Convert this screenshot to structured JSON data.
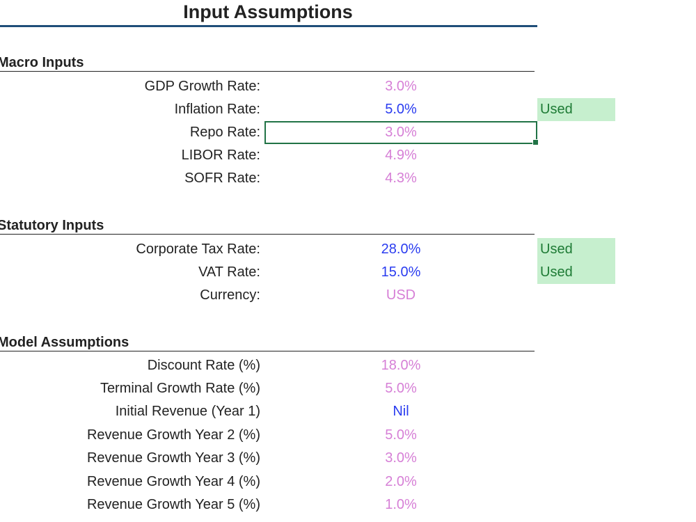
{
  "title": "Input Assumptions",
  "sections": {
    "macro": {
      "heading": "Macro Inputs",
      "rows": [
        {
          "label": "GDP Growth Rate:",
          "value": "3.0%"
        },
        {
          "label": "Inflation Rate:",
          "value": "5.0%",
          "tag": "Used"
        },
        {
          "label": "Repo Rate:",
          "value": "3.0%"
        },
        {
          "label": "LIBOR Rate:",
          "value": "4.9%"
        },
        {
          "label": "SOFR Rate:",
          "value": "4.3%"
        }
      ]
    },
    "statutory": {
      "heading": "Statutory Inputs",
      "rows": [
        {
          "label": "Corporate Tax Rate:",
          "value": "28.0%",
          "tag": "Used"
        },
        {
          "label": "VAT Rate:",
          "value": "15.0%",
          "tag": "Used"
        },
        {
          "label": "Currency:",
          "value": "USD"
        }
      ]
    },
    "model": {
      "heading": "Model Assumptions",
      "rows": [
        {
          "label": "Discount Rate (%)",
          "value": "18.0%"
        },
        {
          "label": "Terminal Growth Rate (%)",
          "value": "5.0%"
        },
        {
          "label": "Initial Revenue (Year 1)",
          "value": "Nil"
        },
        {
          "label": "Revenue Growth Year 2 (%)",
          "value": "5.0%"
        },
        {
          "label": "Revenue Growth Year 3 (%)",
          "value": "3.0%"
        },
        {
          "label": "Revenue Growth Year 4 (%)",
          "value": "2.0%"
        },
        {
          "label": "Revenue Growth Year 5 (%)",
          "value": "1.0%"
        }
      ]
    }
  },
  "colors": {
    "input": "#d67fd6",
    "used_value": "#2a3cf0",
    "used_fill": "#c6efce",
    "header_rule": "#1f4e79"
  }
}
